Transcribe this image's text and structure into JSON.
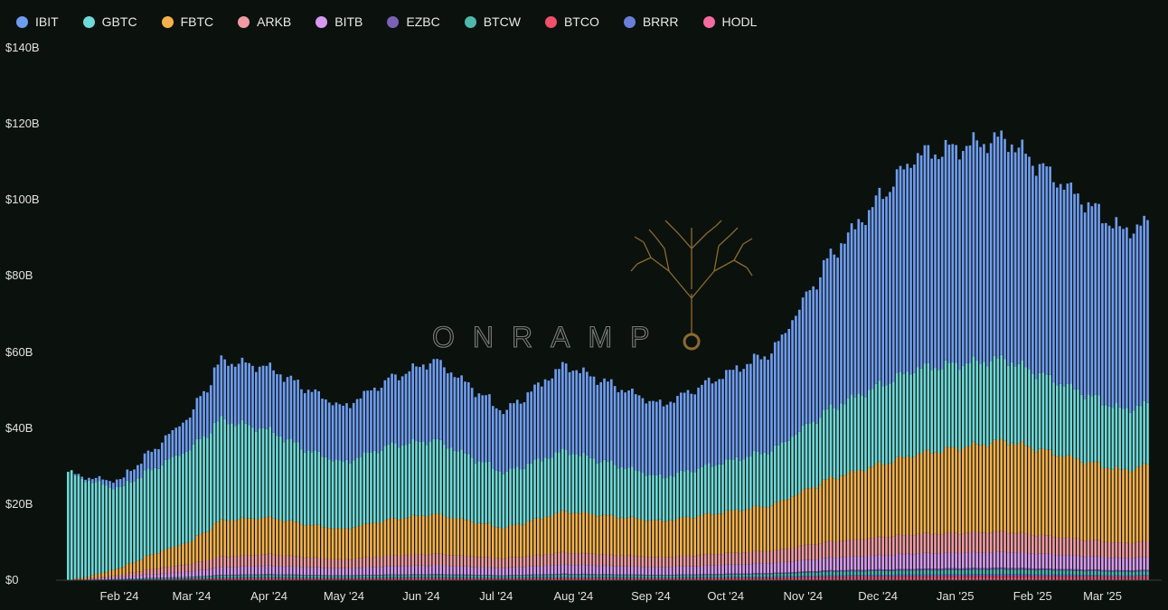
{
  "chart_data": {
    "type": "bar",
    "stacked": true,
    "title": "",
    "xlabel": "",
    "ylabel": "",
    "ylim": [
      0,
      140
    ],
    "y_unit": "billions USD",
    "y_ticks": [
      "$0",
      "$20B",
      "$40B",
      "$60B",
      "$80B",
      "$100B",
      "$120B",
      "$140B"
    ],
    "x_ticks": [
      "Feb '24",
      "Mar '24",
      "Apr '24",
      "May '24",
      "Jun '24",
      "Jul '24",
      "Aug '24",
      "Sep '24",
      "Oct '24",
      "Nov '24",
      "Dec '24",
      "Jan '25",
      "Feb '25",
      "Mar '25"
    ],
    "x_range": [
      "2024-01-11",
      "2025-03-20"
    ],
    "series": [
      {
        "name": "IBIT",
        "color": "#6f9cf0"
      },
      {
        "name": "GBTC",
        "color": "#6fd8d8"
      },
      {
        "name": "FBTC",
        "color": "#f5b04d"
      },
      {
        "name": "ARKB",
        "color": "#f29aa3"
      },
      {
        "name": "BITB",
        "color": "#d89af0"
      },
      {
        "name": "EZBC",
        "color": "#7a62b8"
      },
      {
        "name": "BTCW",
        "color": "#4fb8ad"
      },
      {
        "name": "BTCO",
        "color": "#f0506a"
      },
      {
        "name": "BRRR",
        "color": "#6a7fd8"
      },
      {
        "name": "HODL",
        "color": "#f56aa0"
      }
    ],
    "totals_monthly": [
      {
        "date": "2024-01-11",
        "IBIT": 0.0,
        "GBTC": 28.5,
        "FBTC": 0.0,
        "ARKB": 0.0,
        "BITB": 0.0,
        "other": 0.0
      },
      {
        "date": "2024-01-20",
        "IBIT": 0.8,
        "GBTC": 25.0,
        "FBTC": 0.5,
        "ARKB": 0.2,
        "BITB": 0.2,
        "other": 0.1
      },
      {
        "date": "2024-02-01",
        "IBIT": 2.0,
        "GBTC": 21.0,
        "FBTC": 1.8,
        "ARKB": 0.6,
        "BITB": 0.5,
        "other": 0.3
      },
      {
        "date": "2024-02-15",
        "IBIT": 5.0,
        "GBTC": 22.5,
        "FBTC": 4.0,
        "ARKB": 1.4,
        "BITB": 1.0,
        "other": 0.6
      },
      {
        "date": "2024-03-01",
        "IBIT": 9.0,
        "GBTC": 24.5,
        "FBTC": 6.0,
        "ARKB": 2.0,
        "BITB": 1.4,
        "other": 0.9
      },
      {
        "date": "2024-03-13",
        "IBIT": 15.5,
        "GBTC": 26.5,
        "FBTC": 9.5,
        "ARKB": 2.8,
        "BITB": 2.0,
        "other": 1.4
      },
      {
        "date": "2024-04-01",
        "IBIT": 16.5,
        "GBTC": 23.0,
        "FBTC": 9.7,
        "ARKB": 3.0,
        "BITB": 2.2,
        "other": 1.6
      },
      {
        "date": "2024-04-17",
        "IBIT": 16.0,
        "GBTC": 19.5,
        "FBTC": 8.6,
        "ARKB": 2.6,
        "BITB": 2.0,
        "other": 1.4
      },
      {
        "date": "2024-05-01",
        "IBIT": 14.5,
        "GBTC": 17.5,
        "FBTC": 8.0,
        "ARKB": 2.3,
        "BITB": 1.8,
        "other": 1.3
      },
      {
        "date": "2024-05-20",
        "IBIT": 17.5,
        "GBTC": 19.5,
        "FBTC": 9.5,
        "ARKB": 2.8,
        "BITB": 2.2,
        "other": 1.5
      },
      {
        "date": "2024-06-07",
        "IBIT": 21.0,
        "GBTC": 19.5,
        "FBTC": 10.5,
        "ARKB": 3.0,
        "BITB": 2.3,
        "other": 1.6
      },
      {
        "date": "2024-07-05",
        "IBIT": 16.0,
        "GBTC": 14.5,
        "FBTC": 8.0,
        "ARKB": 2.5,
        "BITB": 1.9,
        "other": 1.3
      },
      {
        "date": "2024-07-29",
        "IBIT": 22.5,
        "GBTC": 16.0,
        "FBTC": 10.8,
        "ARKB": 3.2,
        "BITB": 2.4,
        "other": 1.7
      },
      {
        "date": "2024-09-06",
        "IBIT": 19.0,
        "GBTC": 11.5,
        "FBTC": 9.5,
        "ARKB": 2.6,
        "BITB": 2.0,
        "other": 1.4
      },
      {
        "date": "2024-10-21",
        "IBIT": 26.0,
        "GBTC": 14.5,
        "FBTC": 12.0,
        "ARKB": 3.3,
        "BITB": 2.6,
        "other": 1.9
      },
      {
        "date": "2024-11-13",
        "IBIT": 40.0,
        "GBTC": 18.5,
        "FBTC": 16.5,
        "ARKB": 4.3,
        "BITB": 3.3,
        "other": 2.6
      },
      {
        "date": "2024-12-17",
        "IBIT": 56.0,
        "GBTC": 22.5,
        "FBTC": 21.0,
        "ARKB": 5.1,
        "BITB": 4.0,
        "other": 3.0
      },
      {
        "date": "2025-01-22",
        "IBIT": 58.0,
        "GBTC": 21.5,
        "FBTC": 24.0,
        "ARKB": 5.3,
        "BITB": 4.1,
        "other": 3.3
      },
      {
        "date": "2025-03-10",
        "IBIT": 47.0,
        "GBTC": 16.0,
        "FBTC": 19.0,
        "ARKB": 4.0,
        "BITB": 3.2,
        "other": 2.6
      },
      {
        "date": "2025-03-20",
        "IBIT": 47.5,
        "GBTC": 16.0,
        "FBTC": 20.0,
        "ARKB": 4.1,
        "BITB": 3.3,
        "other": 2.7
      }
    ]
  },
  "watermark": "ONRAMP"
}
